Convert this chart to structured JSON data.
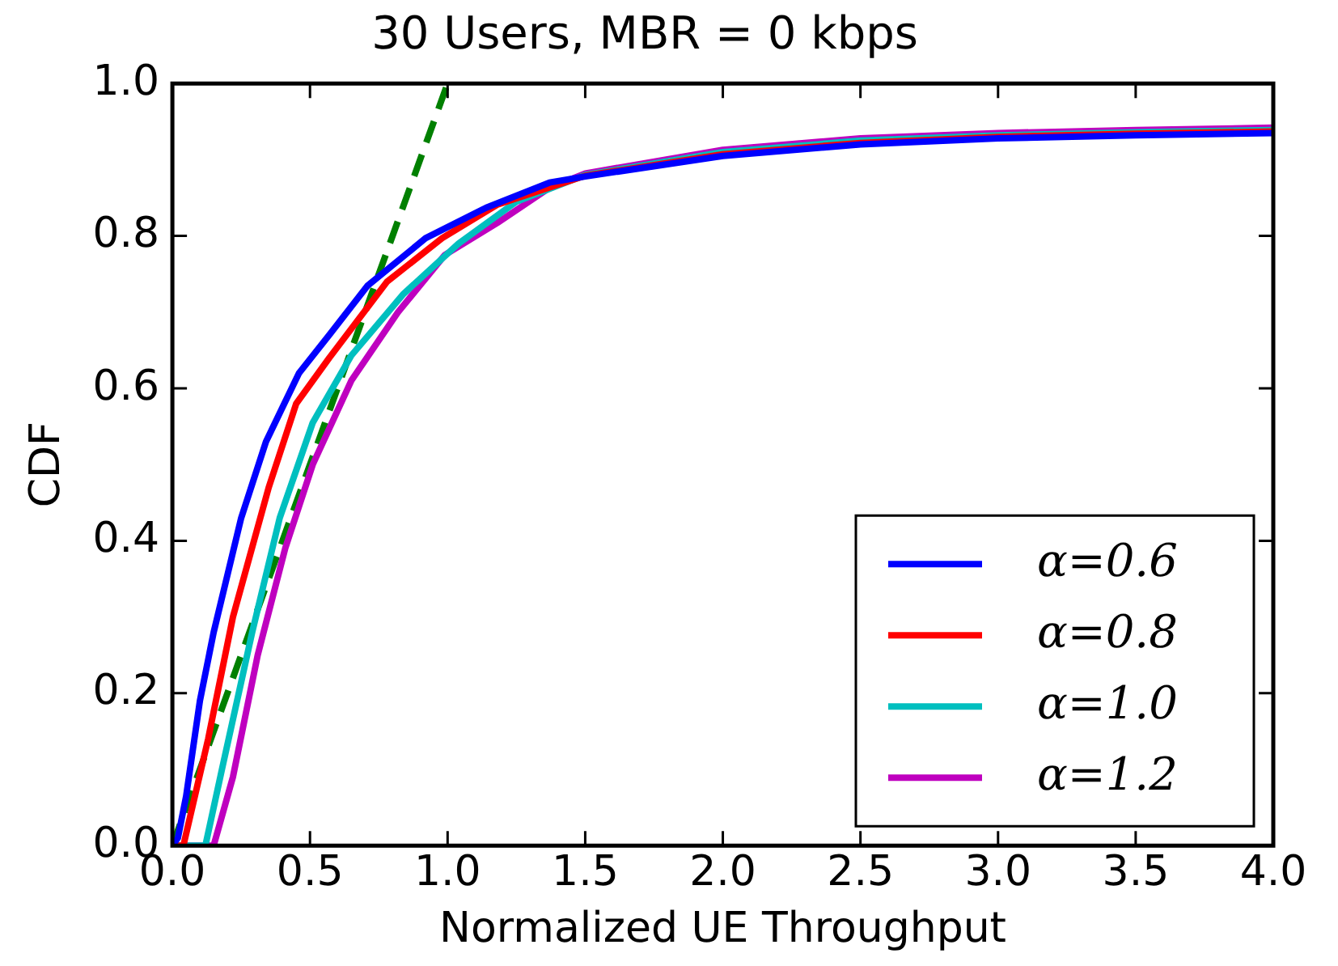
{
  "chart_data": {
    "type": "line",
    "title": "30 Users, MBR = 0 kbps",
    "xlabel": "Normalized UE Throughput",
    "ylabel": "CDF",
    "xlim": [
      0,
      4
    ],
    "ylim": [
      0,
      1
    ],
    "xticks": [
      {
        "value": 0,
        "label": "0.0"
      },
      {
        "value": 0.5,
        "label": "0.5"
      },
      {
        "value": 1,
        "label": "1.0"
      },
      {
        "value": 1.5,
        "label": "1.5"
      },
      {
        "value": 2,
        "label": "2.0"
      },
      {
        "value": 2.5,
        "label": "2.5"
      },
      {
        "value": 3,
        "label": "3.0"
      },
      {
        "value": 3.5,
        "label": "3.5"
      },
      {
        "value": 4,
        "label": "4.0"
      }
    ],
    "yticks": [
      {
        "value": 0,
        "label": "0.0"
      },
      {
        "value": 0.2,
        "label": "0.2"
      },
      {
        "value": 0.4,
        "label": "0.4"
      },
      {
        "value": 0.6,
        "label": "0.6"
      },
      {
        "value": 0.8,
        "label": "0.8"
      },
      {
        "value": 1,
        "label": "1.0"
      }
    ],
    "grid": false,
    "legend": "bottom right",
    "marker": "none",
    "series": [
      {
        "name": "α=0.6",
        "color": "#0000ff",
        "line_style": "solid",
        "x": [
          0,
          0.02,
          0.05,
          0.1,
          0.15,
          0.25,
          0.34,
          0.46,
          0.57,
          0.71,
          0.92,
          1.14,
          1.37,
          1.5,
          2.0,
          2.5,
          3.0,
          3.5,
          4.0
        ],
        "values": [
          0,
          0.01,
          0.065,
          0.19,
          0.28,
          0.43,
          0.53,
          0.62,
          0.67,
          0.735,
          0.797,
          0.837,
          0.87,
          0.878,
          0.905,
          0.92,
          0.928,
          0.932,
          0.935
        ]
      },
      {
        "name": "α=0.8",
        "color": "#ff0000",
        "line_style": "solid",
        "x": [
          0,
          0.04,
          0.13,
          0.22,
          0.35,
          0.45,
          0.57,
          0.78,
          0.98,
          1.18,
          1.5,
          2.0,
          2.5,
          3.0,
          3.5,
          4.0
        ],
        "values": [
          0,
          0,
          0.14,
          0.3,
          0.47,
          0.58,
          0.64,
          0.74,
          0.797,
          0.841,
          0.879,
          0.907,
          0.922,
          0.93,
          0.934,
          0.937
        ]
      },
      {
        "name": "α=1.0",
        "color": "#00bfbf",
        "line_style": "solid",
        "x": [
          0,
          0.12,
          0.18,
          0.29,
          0.39,
          0.51,
          0.65,
          0.84,
          1.04,
          1.25,
          1.5,
          2.0,
          2.5,
          3.0,
          3.5,
          4.0
        ],
        "values": [
          0,
          0,
          0.1,
          0.28,
          0.43,
          0.555,
          0.643,
          0.724,
          0.79,
          0.845,
          0.88,
          0.91,
          0.925,
          0.932,
          0.936,
          0.939
        ]
      },
      {
        "name": "α=1.2",
        "color": "#bf00bf",
        "line_style": "solid",
        "x": [
          0,
          0.15,
          0.22,
          0.31,
          0.41,
          0.51,
          0.65,
          0.82,
          0.99,
          1.18,
          1.37,
          1.5,
          2.0,
          2.5,
          3.0,
          3.5,
          4.0
        ],
        "values": [
          0,
          0,
          0.09,
          0.25,
          0.39,
          0.5,
          0.61,
          0.7,
          0.775,
          0.817,
          0.863,
          0.882,
          0.913,
          0.928,
          0.935,
          0.939,
          0.942
        ]
      },
      {
        "color": "#008000",
        "line_style": "dashed",
        "x": [
          0,
          1
        ],
        "values": [
          0,
          1
        ]
      }
    ]
  }
}
